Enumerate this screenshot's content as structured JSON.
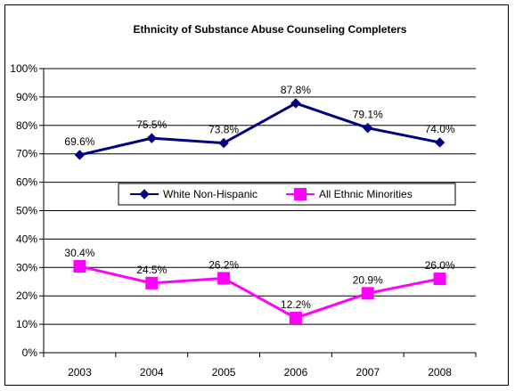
{
  "chart_data": {
    "type": "line",
    "title": "Ethnicity of Substance Abuse Counseling Completers",
    "xlabel": "",
    "ylabel": "",
    "categories": [
      "2003",
      "2004",
      "2005",
      "2006",
      "2007",
      "2008"
    ],
    "ylim": [
      0,
      100
    ],
    "yticks": [
      0,
      10,
      20,
      30,
      40,
      50,
      60,
      70,
      80,
      90,
      100
    ],
    "ytick_labels": [
      "0%",
      "10%",
      "20%",
      "30%",
      "40%",
      "50%",
      "60%",
      "70%",
      "80%",
      "90%",
      "100%"
    ],
    "grid": true,
    "legend_position": "center",
    "series": [
      {
        "name": "White Non-Hispanic",
        "values": [
          69.6,
          75.5,
          73.8,
          87.8,
          79.1,
          74.0
        ],
        "labels": [
          "69.6%",
          "75.5%",
          "73.8%",
          "87.8%",
          "79.1%",
          "74.0%"
        ],
        "color": "#000080",
        "marker": "diamond"
      },
      {
        "name": "All Ethnic Minorities",
        "values": [
          30.4,
          24.5,
          26.2,
          12.2,
          20.9,
          26.0
        ],
        "labels": [
          "30.4%",
          "24.5%",
          "26.2%",
          "12.2%",
          "20.9%",
          "26.0%"
        ],
        "color": "#FF00FF",
        "marker": "square"
      }
    ]
  }
}
